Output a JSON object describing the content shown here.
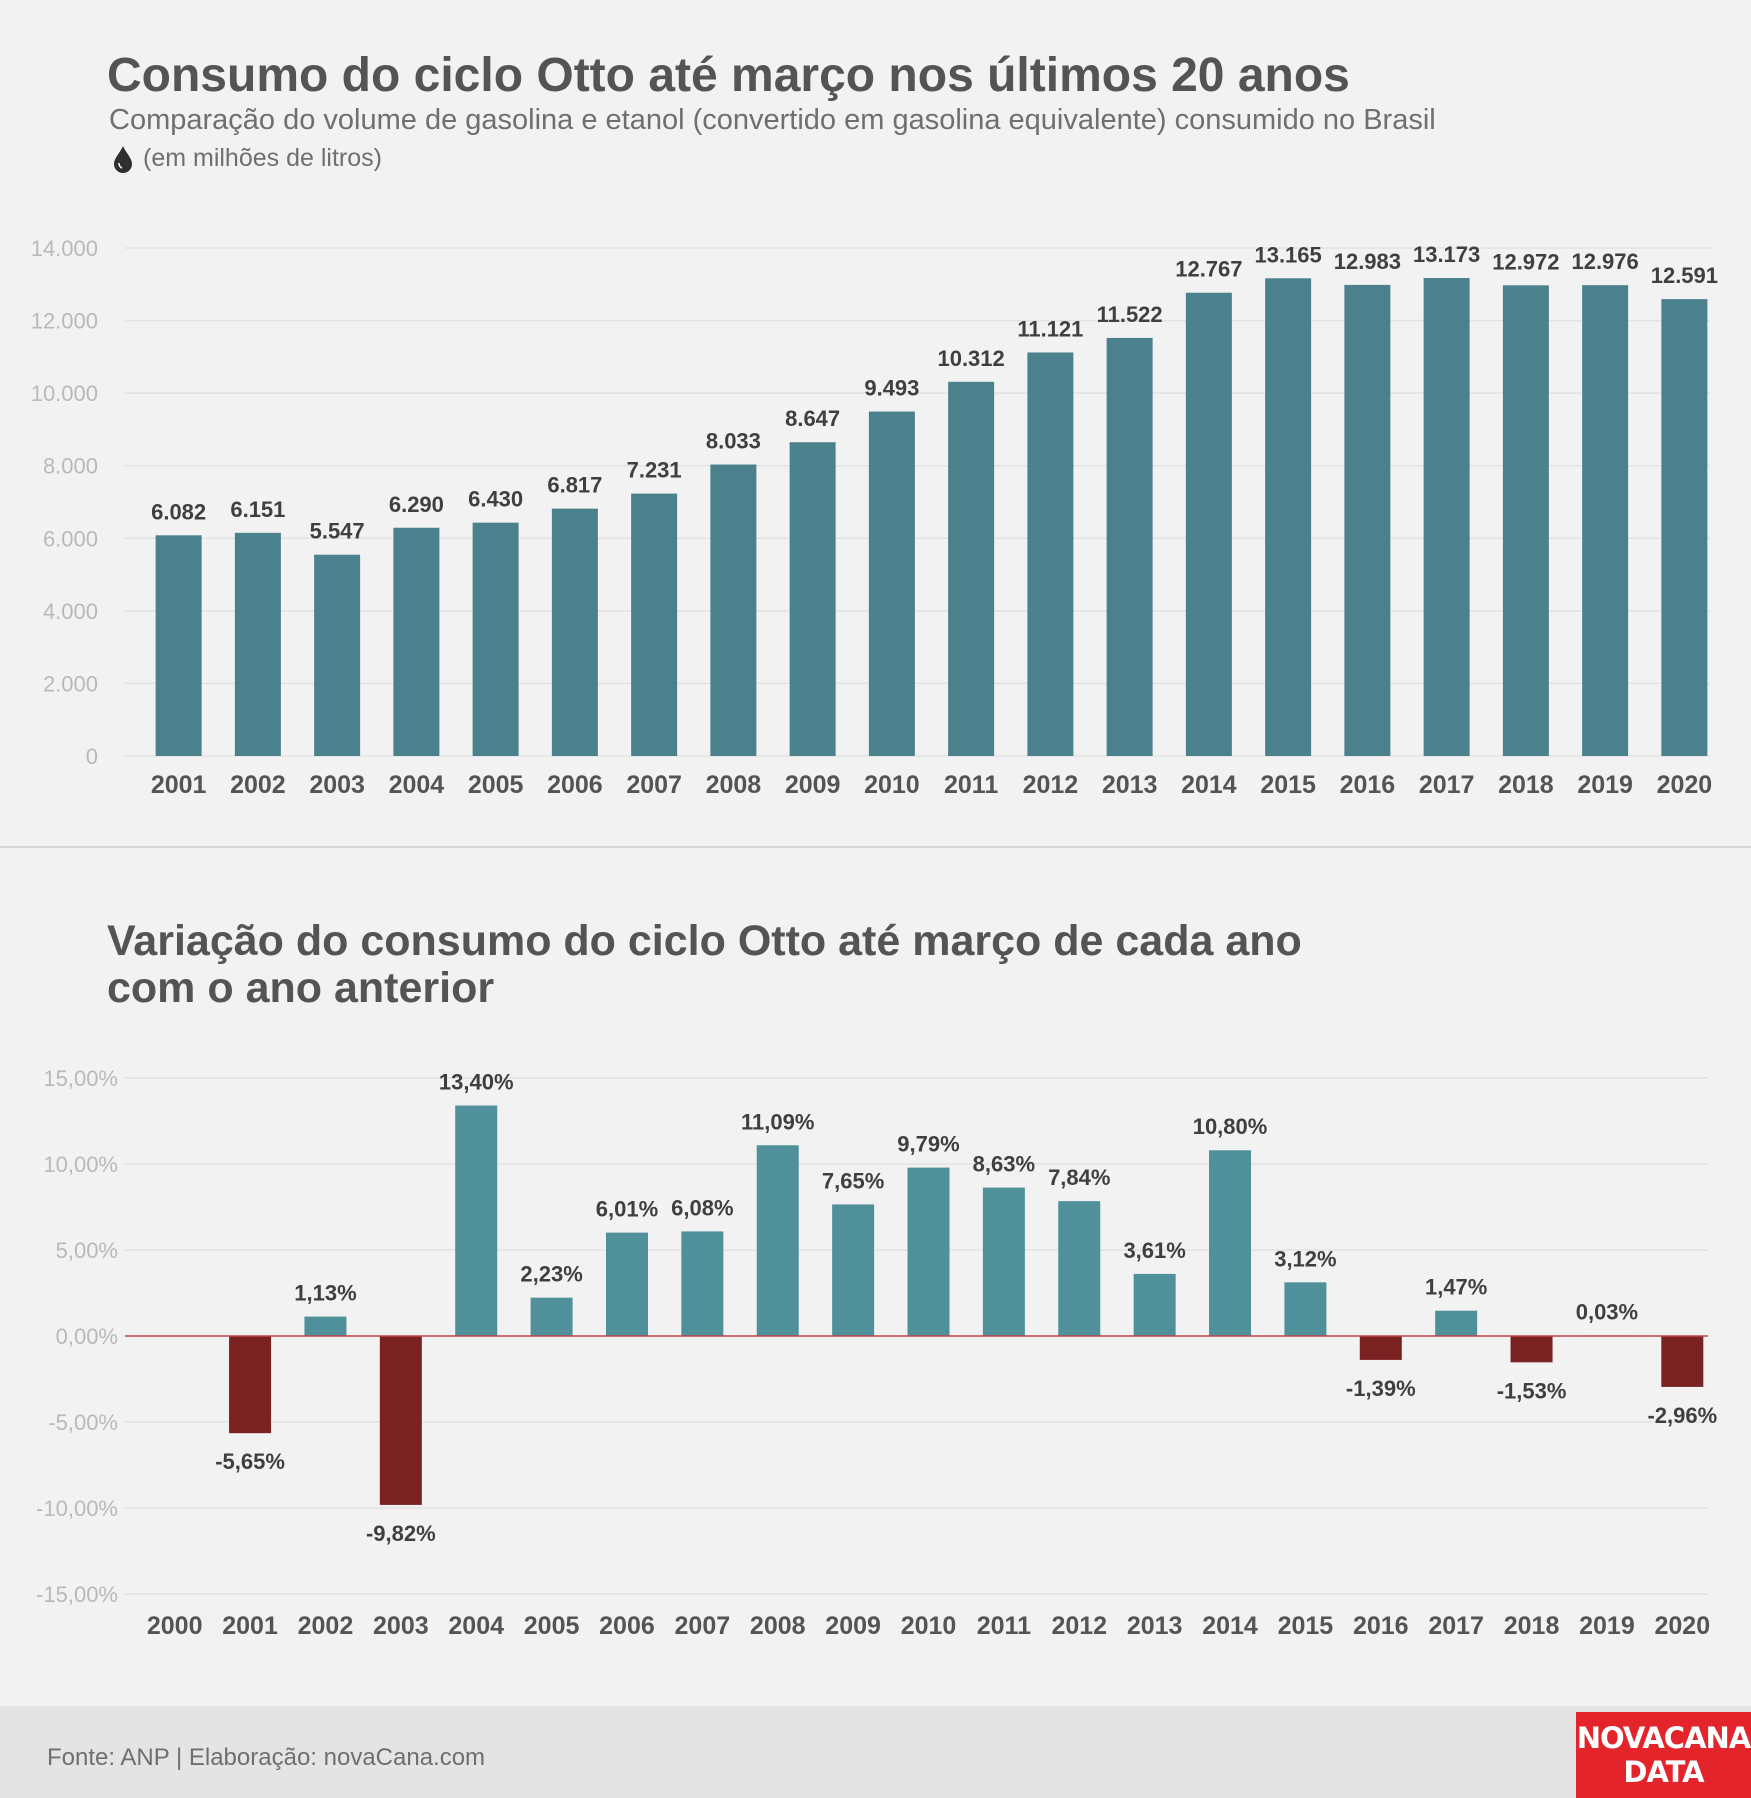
{
  "header": {
    "title": "Consumo do ciclo Otto até março nos últimos 20 anos",
    "subtitle": "Comparação do volume de gasolina e etanol (convertido em gasolina equivalente) consumido no Brasil",
    "unit": "(em milhões de litros)",
    "unit_icon": "drop-icon"
  },
  "section2": {
    "title_line1": "Variação do consumo do ciclo Otto até março de cada ano",
    "title_line2": "com o ano anterior"
  },
  "footer": {
    "source": "Fonte: ANP | Elaboração: novaCana.com",
    "logo_line1": "NOVACANA",
    "logo_line2": "DATA"
  },
  "colors": {
    "bar": "#4b818c",
    "bar_positive": "#4f909a",
    "bar_negative": "#7a2222",
    "zero_line": "#c0454a",
    "grid": "#e2e2e2",
    "logo_bg": "#e3242b"
  },
  "chart_data": [
    {
      "type": "bar",
      "title": "Consumo do ciclo Otto até março nos últimos 20 anos",
      "categories": [
        "2001",
        "2002",
        "2003",
        "2004",
        "2005",
        "2006",
        "2007",
        "2008",
        "2009",
        "2010",
        "2011",
        "2012",
        "2013",
        "2014",
        "2015",
        "2016",
        "2017",
        "2018",
        "2019",
        "2020"
      ],
      "values": [
        6082,
        6151,
        5547,
        6290,
        6430,
        6817,
        7231,
        8033,
        8647,
        9493,
        10312,
        11121,
        11522,
        12767,
        13165,
        12983,
        13173,
        12972,
        12976,
        12591
      ],
      "value_labels": [
        "6.082",
        "6.151",
        "5.547",
        "6.290",
        "6.430",
        "6.817",
        "7.231",
        "8.033",
        "8.647",
        "9.493",
        "10.312",
        "11.121",
        "11.522",
        "12.767",
        "13.165",
        "12.983",
        "13.173",
        "12.972",
        "12.976",
        "12.591"
      ],
      "yticks": [
        0,
        2000,
        4000,
        6000,
        8000,
        10000,
        12000,
        14000
      ],
      "ytick_labels": [
        "0",
        "2.000",
        "4.000",
        "6.000",
        "8.000",
        "10.000",
        "12.000",
        "14.000"
      ],
      "ylim": [
        0,
        14000
      ],
      "grid": true
    },
    {
      "type": "bar",
      "title": "Variação do consumo do ciclo Otto até março de cada ano com o ano anterior",
      "categories": [
        "2000",
        "2001",
        "2002",
        "2003",
        "2004",
        "2005",
        "2006",
        "2007",
        "2008",
        "2009",
        "2010",
        "2011",
        "2012",
        "2013",
        "2014",
        "2015",
        "2016",
        "2017",
        "2018",
        "2019",
        "2020"
      ],
      "values": [
        null,
        -5.65,
        1.13,
        -9.82,
        13.4,
        2.23,
        6.01,
        6.08,
        11.09,
        7.65,
        9.79,
        8.63,
        7.84,
        3.61,
        10.8,
        3.12,
        -1.39,
        1.47,
        -1.53,
        0.03,
        -2.96
      ],
      "value_labels": [
        "",
        "-5,65%",
        "1,13%",
        "-9,82%",
        "13,40%",
        "2,23%",
        "6,01%",
        "6,08%",
        "11,09%",
        "7,65%",
        "9,79%",
        "8,63%",
        "7,84%",
        "3,61%",
        "10,80%",
        "3,12%",
        "-1,39%",
        "1,47%",
        "-1,53%",
        "0,03%",
        "-2,96%"
      ],
      "yticks": [
        15,
        10,
        5,
        0,
        -5,
        -10,
        -15
      ],
      "ytick_labels": [
        "15,00%",
        "10,00%",
        "5,00%",
        "0,00%",
        "-5,00%",
        "-10,00%",
        "-15,00%"
      ],
      "ylim": [
        -15,
        15
      ],
      "grid": true
    }
  ]
}
